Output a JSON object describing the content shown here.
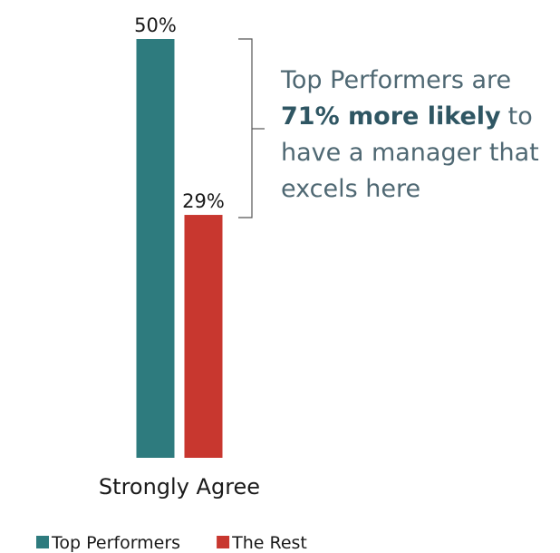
{
  "chart_data": {
    "type": "bar",
    "categories": [
      "Strongly Agree"
    ],
    "series": [
      {
        "name": "Top Performers",
        "color": "#2e7b7e",
        "values": [
          50
        ],
        "value_labels": [
          "50%"
        ]
      },
      {
        "name": "The Rest",
        "color": "#c8372f",
        "values": [
          29
        ],
        "value_labels": [
          "29%"
        ]
      }
    ],
    "annotation": {
      "lines": [
        {
          "text": "Top Performers are"
        },
        {
          "bold": "71% more likely",
          "text": "to"
        },
        {
          "text": "have a manager that"
        },
        {
          "text": "excels here"
        }
      ]
    },
    "legend": "bottom-left"
  }
}
